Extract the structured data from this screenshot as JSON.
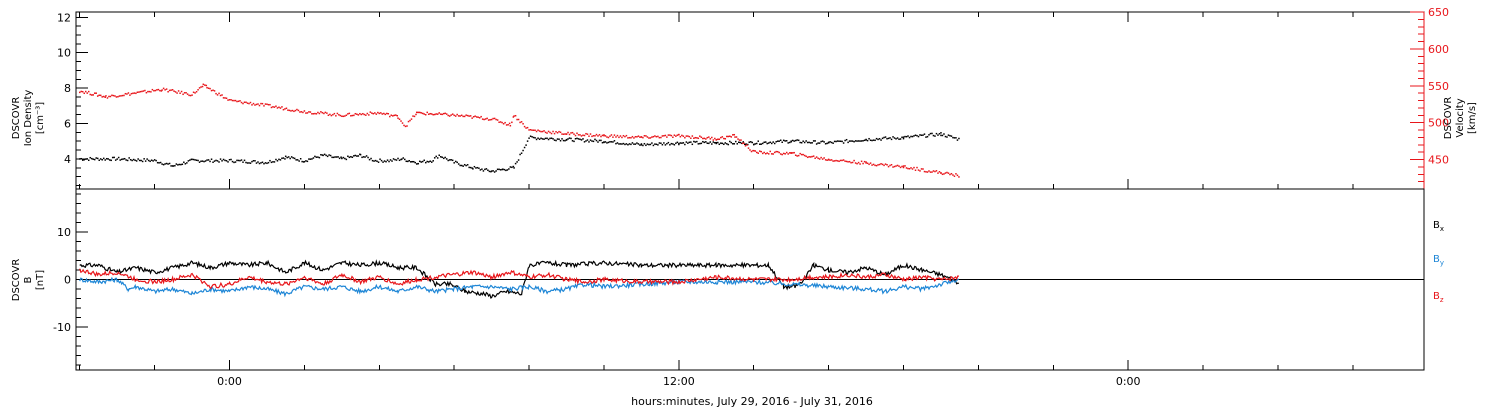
{
  "chart_data": [
    {
      "type": "scatter",
      "panel": "plasma",
      "left_axis": {
        "label_lines": [
          "DSCOVR",
          "Ion Density",
          "[cm⁻³]"
        ],
        "ylim": [
          2.3,
          12.3
        ],
        "ticks": [
          4,
          6,
          8,
          10,
          12
        ]
      },
      "right_axis": {
        "label_lines": [
          "DSCOVR",
          "Velocity",
          "[km/s]"
        ],
        "color": "#e8161b",
        "ylim": [
          410,
          650
        ],
        "ticks": [
          450,
          500,
          550,
          600,
          650
        ]
      },
      "xlim": [
        -4.1,
        31.9
      ],
      "series": [
        {
          "name": "Ion Density",
          "axis": "left",
          "color": "#000000",
          "x": [
            -4.0,
            -3.0,
            -2.0,
            -1.5,
            -1.0,
            0.0,
            1.0,
            1.5,
            2.0,
            2.5,
            3.0,
            3.5,
            3.9,
            4.3,
            4.6,
            5.0,
            5.4,
            5.6,
            6.0,
            6.5,
            7.0,
            7.3,
            7.6,
            8.0,
            9.0,
            10.0,
            11.0,
            12.0,
            13.0,
            14.0,
            15.0,
            16.0,
            17.0,
            18.0,
            19.0,
            19.5
          ],
          "y": [
            4.0,
            4.0,
            3.9,
            3.6,
            3.9,
            3.9,
            3.8,
            4.1,
            3.9,
            4.2,
            4.0,
            4.2,
            3.9,
            3.9,
            4.0,
            3.8,
            3.9,
            4.2,
            3.8,
            3.5,
            3.3,
            3.4,
            3.5,
            5.2,
            5.1,
            5.0,
            4.8,
            4.9,
            4.9,
            4.9,
            5.0,
            4.9,
            5.1,
            5.2,
            5.4,
            5.1
          ]
        },
        {
          "name": "Velocity",
          "axis": "right",
          "color": "#e8161b",
          "x": [
            -4.0,
            -3.3,
            -2.5,
            -1.8,
            -1.0,
            -0.7,
            -0.6,
            0.0,
            1.0,
            2.0,
            3.0,
            4.0,
            4.5,
            4.7,
            5.0,
            6.0,
            7.0,
            7.5,
            7.6,
            8.0,
            9.0,
            10.0,
            11.0,
            12.0,
            13.0,
            13.5,
            14.0,
            15.0,
            16.0,
            17.0,
            18.0,
            19.0,
            19.5
          ],
          "y": [
            543,
            535,
            540,
            545,
            538,
            550,
            548,
            530,
            523,
            515,
            510,
            513,
            508,
            495,
            513,
            510,
            505,
            497,
            510,
            490,
            485,
            482,
            480,
            482,
            478,
            482,
            460,
            458,
            450,
            445,
            440,
            432,
            428
          ]
        }
      ]
    },
    {
      "type": "line",
      "panel": "magnetic",
      "left_axis": {
        "label_lines": [
          "DSCOVR",
          "B",
          "[nT]"
        ],
        "ylim": [
          -19,
          19
        ],
        "ticks": [
          -10,
          0,
          10
        ]
      },
      "xlim": [
        -4.1,
        31.9
      ],
      "zero_line": 0,
      "series": [
        {
          "name": "Bx",
          "color": "#000000",
          "x": [
            -4.0,
            -3.5,
            -3.0,
            -2.5,
            -2.0,
            -1.5,
            -1.0,
            -0.5,
            0.0,
            0.5,
            1.0,
            1.5,
            2.0,
            2.5,
            3.0,
            3.5,
            4.0,
            4.5,
            5.0,
            5.5,
            5.9,
            6.3,
            6.8,
            7.0,
            7.4,
            7.8,
            8.0,
            8.5,
            9.0,
            10.0,
            11.0,
            12.0,
            13.0,
            14.0,
            14.4,
            14.8,
            15.1,
            15.3,
            15.6,
            16.0,
            16.5,
            17.0,
            17.5,
            18.0,
            18.5,
            19.0,
            19.3,
            19.5
          ],
          "y": [
            3,
            3,
            1.5,
            2.5,
            1.5,
            2.5,
            3.5,
            2.5,
            3.5,
            3,
            3.5,
            1.5,
            3.5,
            2,
            3.5,
            3,
            3.5,
            2.5,
            2.5,
            -1,
            -1,
            -2.5,
            -3,
            -3.5,
            -2.5,
            -3,
            3,
            3.5,
            3,
            3.5,
            3,
            3,
            3,
            3,
            3,
            -1.5,
            -1.5,
            -0.5,
            3,
            2,
            1.5,
            2.5,
            1,
            3,
            2,
            1,
            0,
            -1
          ]
        },
        {
          "name": "By",
          "color": "#1e86d6",
          "x": [
            -4.0,
            -3.5,
            -3.0,
            -2.7,
            -2.5,
            -2.0,
            -1.5,
            -1.0,
            -0.5,
            0.0,
            0.5,
            1.0,
            1.5,
            2.0,
            2.5,
            3.0,
            3.5,
            4.0,
            4.5,
            5.0,
            5.5,
            6.0,
            6.5,
            7.0,
            7.5,
            8.0,
            8.5,
            9.0,
            9.5,
            10.0,
            11.0,
            12.0,
            13.0,
            14.0,
            15.0,
            16.0,
            17.0,
            17.5,
            18.0,
            18.5,
            19.0,
            19.5
          ],
          "y": [
            0,
            -0.5,
            0,
            -2,
            -1.5,
            -2.5,
            -2,
            -3,
            -2,
            -2.5,
            -1.5,
            -2,
            -3,
            -1.5,
            -2,
            -1.5,
            -2.5,
            -1.5,
            -2.5,
            -1.5,
            -2.5,
            -2,
            -1.5,
            -1.5,
            -2,
            -1.5,
            -2.5,
            -2,
            -1,
            -1.5,
            -1,
            -0.5,
            -0.5,
            -0.5,
            -1,
            -1.5,
            -2,
            -2.5,
            -1.5,
            -2,
            -1,
            0
          ]
        },
        {
          "name": "Bz",
          "color": "#e8161b",
          "x": [
            -4.0,
            -3.5,
            -3.0,
            -2.5,
            -2.0,
            -1.5,
            -1.0,
            -0.5,
            0.0,
            0.5,
            1.0,
            1.5,
            2.0,
            2.5,
            3.0,
            3.5,
            4.0,
            4.5,
            5.0,
            5.5,
            6.0,
            6.5,
            7.0,
            7.5,
            8.0,
            8.5,
            9.0,
            9.5,
            10.0,
            11.0,
            12.0,
            13.0,
            14.0,
            15.0,
            15.5,
            16.0,
            16.5,
            17.0,
            17.5,
            18.0,
            18.5,
            19.0,
            19.5
          ],
          "y": [
            2,
            1,
            1.5,
            0,
            -0.5,
            0,
            1,
            -1.5,
            -1,
            0.5,
            -0.5,
            -1,
            0.5,
            -1,
            1,
            -0.5,
            0.5,
            -1,
            0,
            0.5,
            1,
            1.5,
            0.5,
            1.5,
            0.5,
            1,
            0,
            -0.5,
            0,
            -0.5,
            -0.5,
            0.5,
            0,
            0,
            0.5,
            0.5,
            1,
            0.5,
            1,
            0,
            0.5,
            0,
            0.5
          ]
        }
      ],
      "legend": [
        {
          "label": "B",
          "sub": "x",
          "color": "#000000"
        },
        {
          "label": "B",
          "sub": "y",
          "color": "#1e86d6"
        },
        {
          "label": "B",
          "sub": "z",
          "color": "#e8161b"
        }
      ],
      "x_ticks": [
        {
          "value": 0,
          "label": "0:00"
        },
        {
          "value": 12,
          "label": "12:00"
        },
        {
          "value": 24,
          "label": "0:00"
        }
      ],
      "xlabel": "hours:minutes, July 29, 2016 - July 31, 2016"
    }
  ]
}
